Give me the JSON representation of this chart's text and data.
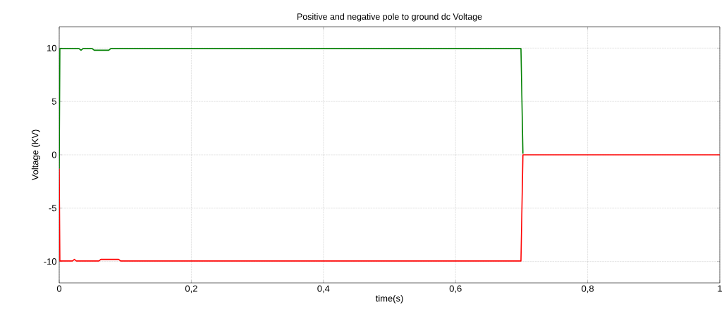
{
  "chart_data": {
    "type": "line",
    "title": "Positive and negative pole to ground dc Voltage",
    "xlabel": "time(s)",
    "ylabel": "Voltage (KV)",
    "xlim": [
      0,
      1
    ],
    "ylim": [
      -12,
      12
    ],
    "xticks": [
      0,
      {
        "value": 0.2,
        "label": "0,2"
      },
      {
        "value": 0.4,
        "label": "0,4"
      },
      {
        "value": 0.6,
        "label": "0,6"
      },
      {
        "value": 0.8,
        "label": "0,8"
      },
      1
    ],
    "yticks": [
      -10,
      -5,
      0,
      5,
      10
    ],
    "grid": true,
    "marker": "none",
    "line_style": "solid",
    "series": [
      {
        "color": "#008000",
        "x": [
          0,
          0.001,
          0.03,
          0.033,
          0.036,
          0.05,
          0.053,
          0.075,
          0.078,
          0.699,
          0.702
        ],
        "values": [
          -1.3,
          9.95,
          9.95,
          9.8,
          9.95,
          9.95,
          9.8,
          9.8,
          9.95,
          9.95,
          0.1
        ]
      },
      {
        "color": "#ff0000",
        "x": [
          0,
          0.001,
          0.02,
          0.023,
          0.026,
          0.06,
          0.063,
          0.09,
          0.093,
          0.699,
          0.702,
          1
        ],
        "values": [
          -1.3,
          -9.95,
          -9.95,
          -9.8,
          -9.95,
          -9.95,
          -9.8,
          -9.8,
          -9.95,
          -9.95,
          0,
          0
        ]
      }
    ]
  }
}
